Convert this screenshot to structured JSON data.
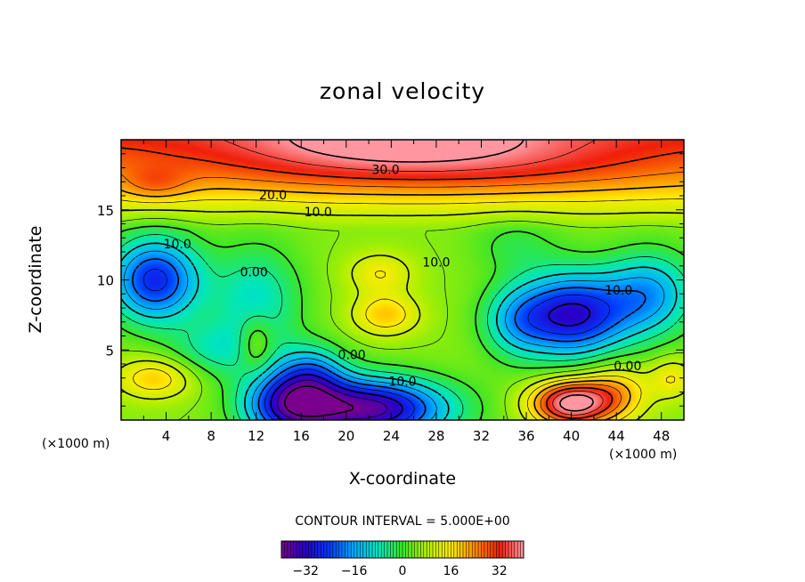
{
  "chart_data": {
    "type": "heatmap",
    "title": "zonal velocity",
    "xlabel": "X-coordinate",
    "ylabel": "Z-coordinate",
    "x_unit": "(×1000 m)",
    "xlim": [
      0,
      50
    ],
    "ylim": [
      0,
      20
    ],
    "x_ticks": [
      4,
      8,
      12,
      16,
      20,
      24,
      28,
      32,
      36,
      40,
      44,
      48
    ],
    "y_ticks": [
      5,
      10,
      15
    ],
    "contour_interval_text": "CONTOUR INTERVAL = 5.000E+00",
    "colorbar": {
      "range": [
        -40,
        40
      ],
      "ticks": [
        -32,
        -16,
        0,
        16,
        32
      ],
      "tick_labels": [
        "−32",
        "−16",
        "0",
        "16",
        "32"
      ]
    },
    "contour_labels": [
      {
        "text": "30.0",
        "x": 23.5,
        "z": 17.8
      },
      {
        "text": "20.0",
        "x": 13.5,
        "z": 16.0
      },
      {
        "text": "10.0",
        "x": 17.5,
        "z": 14.8
      },
      {
        "text": "10.0",
        "x": 5.0,
        "z": 12.5
      },
      {
        "text": "0.00",
        "x": 11.8,
        "z": 10.5
      },
      {
        "text": "10.0",
        "x": 28.0,
        "z": 11.2
      },
      {
        "text": "10.0",
        "x": 44.2,
        "z": 9.2
      },
      {
        "text": "0.00",
        "x": 20.5,
        "z": 4.6
      },
      {
        "text": "10.0",
        "x": 25.0,
        "z": 2.7
      },
      {
        "text": "0.00",
        "x": 45.0,
        "z": 3.8
      }
    ],
    "field_features": [
      {
        "x": 27,
        "z": 18,
        "v": 12,
        "sx": 20,
        "sz": 2.0
      },
      {
        "x": 25,
        "z": 20,
        "v": 12,
        "sx": 12,
        "sz": 1.5
      },
      {
        "x": 3,
        "z": 16.8,
        "v": 8,
        "sx": 3,
        "sz": 1.2
      },
      {
        "x": 3,
        "z": 10,
        "v": -32,
        "sx": 4,
        "sz": 3
      },
      {
        "x": 12,
        "z": 8.5,
        "v": -14,
        "sx": 4,
        "sz": 4
      },
      {
        "x": 8,
        "z": 5,
        "v": -10,
        "sx": 4,
        "sz": 2
      },
      {
        "x": 40,
        "z": 7.5,
        "v": -36,
        "sx": 5,
        "sz": 3
      },
      {
        "x": 47,
        "z": 9,
        "v": -20,
        "sx": 4,
        "sz": 3
      },
      {
        "x": 35,
        "z": 7,
        "v": -12,
        "sx": 3,
        "sz": 2.5
      },
      {
        "x": 22,
        "z": 0.8,
        "v": -42,
        "sx": 7,
        "sz": 2.2
      },
      {
        "x": 15,
        "z": 1.2,
        "v": -30,
        "sx": 4,
        "sz": 2.5
      },
      {
        "x": 17,
        "z": 3.5,
        "v": -15,
        "sx": 3,
        "sz": 2
      },
      {
        "x": 23.5,
        "z": 7.5,
        "v": 14,
        "sx": 3,
        "sz": 1.5
      },
      {
        "x": 23,
        "z": 10.5,
        "v": 10,
        "sx": 3,
        "sz": 1.5
      },
      {
        "x": 3,
        "z": 3,
        "v": 14,
        "sx": 3.5,
        "sz": 1.5
      },
      {
        "x": 40,
        "z": 1.2,
        "v": 38,
        "sx": 3.5,
        "sz": 1.6
      },
      {
        "x": 44,
        "z": 2,
        "v": 14,
        "sx": 3,
        "sz": 2
      },
      {
        "x": 49,
        "z": 3,
        "v": 10,
        "sx": 2,
        "sz": 1.5
      },
      {
        "x": 12,
        "z": 5.5,
        "v": 10,
        "sx": 1.5,
        "sz": 2
      },
      {
        "x": 35,
        "z": 12.5,
        "v": -6,
        "sx": 4,
        "sz": 2
      }
    ]
  }
}
